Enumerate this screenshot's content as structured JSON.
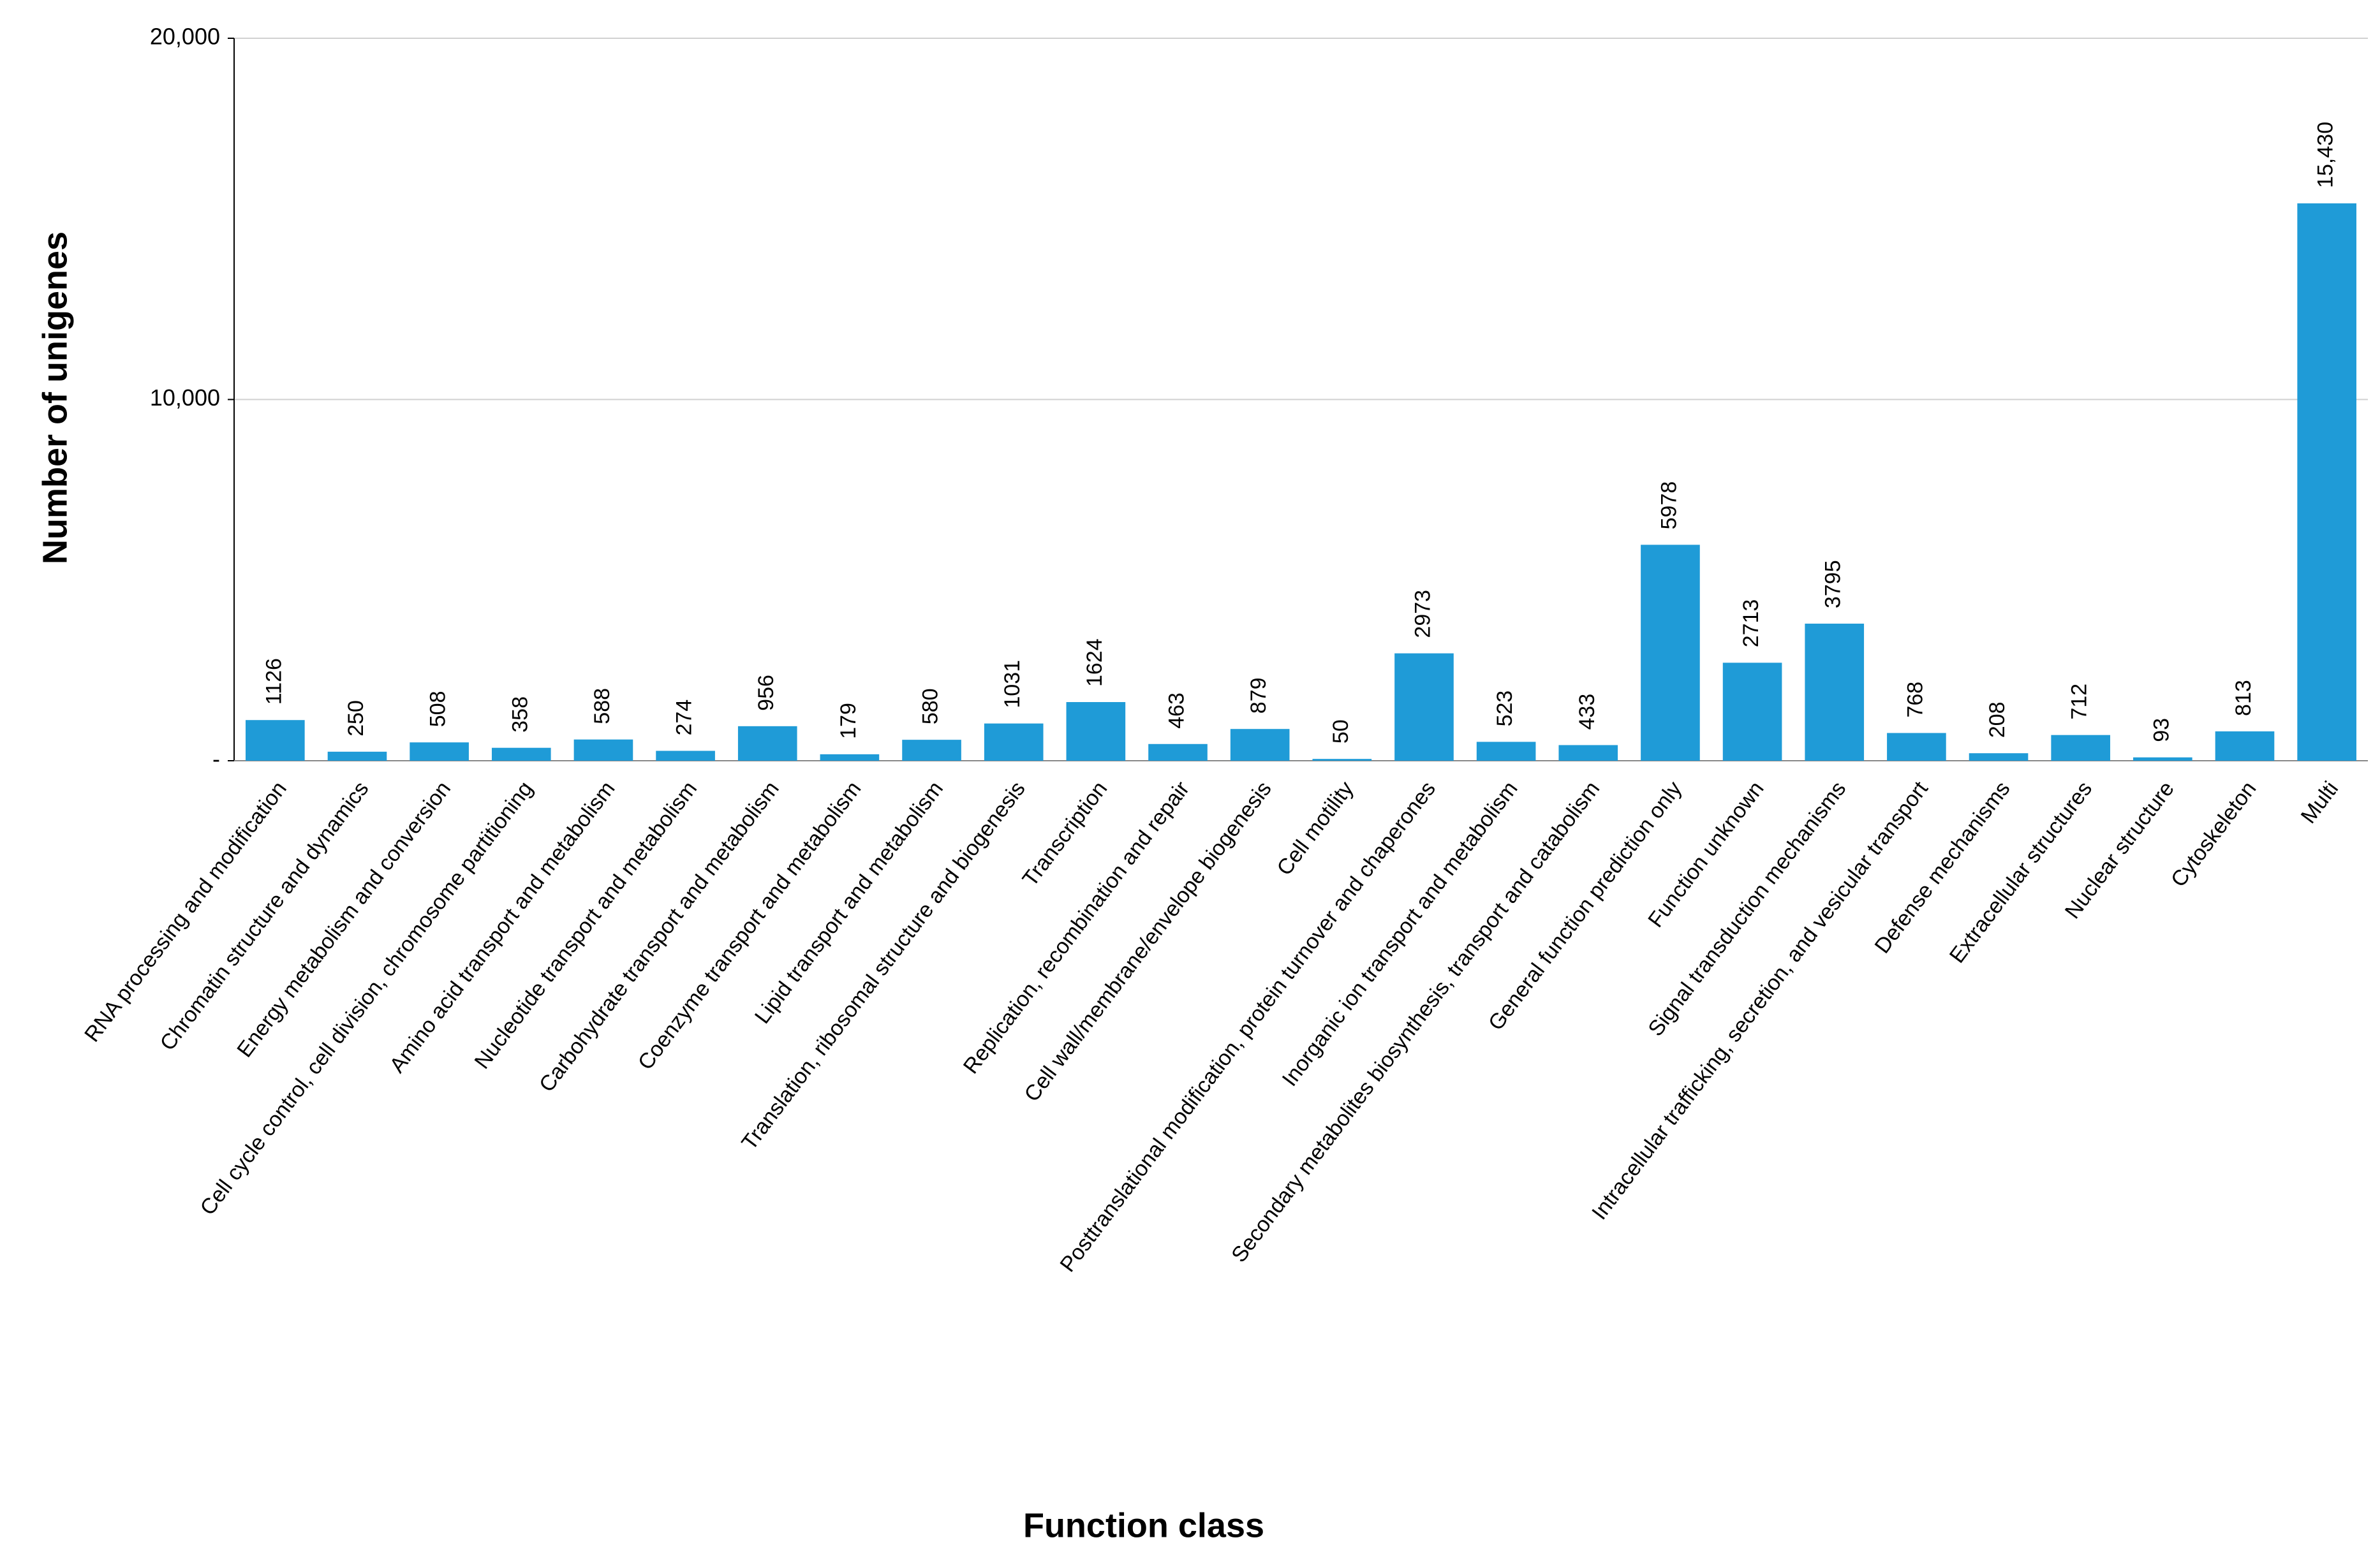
{
  "chart_data": {
    "type": "bar",
    "x_label": "Function class",
    "y_label": "Number of unigenes",
    "categories": [
      "RNA processing and modification",
      "Chromatin structure and dynamics",
      "Energy metabolism and conversion",
      "Cell cycle control, cell division, chromosome partitioning",
      "Amino acid transport and metabolism",
      "Nucleotide transport and metabolism",
      "Carbohydrate transport and metabolism",
      "Coenzyme transport and metabolism",
      "Lipid transport and metabolism",
      "Translation, ribosomal structure and biogenesis",
      "Transcription",
      "Replication, recombination and repair",
      "Cell wall/membrane/envelope biogenesis",
      "Cell motility",
      "Posttranslational modification, protein turnover and chaperones",
      "Inorganic ion transport and metabolism",
      "Secondary metabolites biosynthesis, transport and catabolism",
      "General function prediction only",
      "Function unknown",
      "Signal transduction mechanisms",
      "Intracellular trafficking, secretion, and vesicular transport",
      "Defense mechanisms",
      "Extracellular structures",
      "Nuclear structure",
      "Cytoskeleton",
      "Multi"
    ],
    "values": [
      1126,
      250,
      508,
      358,
      588,
      274,
      956,
      179,
      580,
      1031,
      1624,
      463,
      879,
      50,
      2973,
      523,
      433,
      5978,
      2713,
      3795,
      768,
      208,
      712,
      93,
      813,
      15430
    ],
    "value_labels": [
      "1126",
      "250",
      "508",
      "358",
      "588",
      "274",
      "956",
      "179",
      "580",
      "1031",
      "1624",
      "463",
      "879",
      "50",
      "2973",
      "523",
      "433",
      "5978",
      "2713",
      "3795",
      "768",
      "208",
      "712",
      "93",
      "813",
      "15,430"
    ],
    "color": "#1f9bd7",
    "ylim": [
      0,
      20000
    ],
    "yticks": [
      {
        "value": 0,
        "label": "-"
      },
      {
        "value": 10000,
        "label": "10,000"
      },
      {
        "value": 20000,
        "label": "20,000"
      }
    ],
    "grid": true
  }
}
